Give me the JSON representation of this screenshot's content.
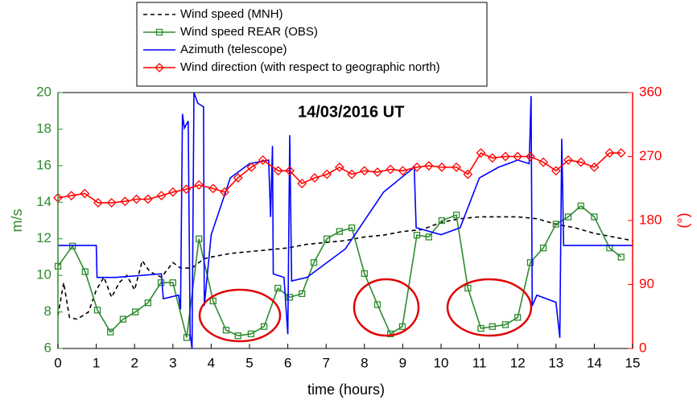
{
  "chart_data": {
    "type": "line",
    "annotation": "14/03/2016 UT",
    "xlabel": "time (hours)",
    "ylabel": "m/s",
    "y2label": "(°)",
    "xlim": [
      0,
      15
    ],
    "xticks": [
      0,
      1,
      2,
      3,
      4,
      5,
      6,
      7,
      8,
      9,
      10,
      11,
      12,
      13,
      14,
      15
    ],
    "ylim": [
      6,
      20
    ],
    "yticks": [
      6,
      8,
      10,
      12,
      14,
      16,
      18,
      20
    ],
    "y2lim": [
      0,
      360
    ],
    "y2ticks": [
      0,
      90,
      180,
      270,
      360
    ],
    "ycolor": "#2e8b2e",
    "y2color": "#ff0000",
    "series": [
      {
        "name": "Wind speed (MNH)",
        "color": "#000000",
        "dash": true,
        "marker": "none",
        "axis": "y",
        "x": [
          0,
          0.15,
          0.3,
          0.5,
          0.8,
          1.0,
          1.2,
          1.4,
          1.6,
          1.8,
          2.0,
          2.2,
          2.4,
          2.7,
          3.0,
          3.2,
          3.5,
          3.8,
          4.0,
          4.5,
          5.0,
          5.5,
          6.0,
          6.5,
          7.0,
          7.5,
          8.0,
          8.5,
          9.0,
          9.5,
          10.0,
          10.5,
          11.0,
          11.5,
          12.0,
          12.5,
          13.0,
          13.5,
          14.0,
          14.5,
          15.0
        ],
        "values": [
          7.8,
          9.6,
          7.7,
          7.6,
          8.0,
          9.2,
          9.9,
          8.8,
          9.6,
          10.0,
          9.2,
          10.8,
          10.2,
          9.9,
          10.7,
          10.4,
          10.4,
          10.9,
          11.0,
          11.2,
          11.3,
          11.4,
          11.5,
          11.7,
          11.8,
          11.9,
          12.1,
          12.2,
          12.4,
          12.5,
          12.9,
          13.1,
          13.2,
          13.2,
          13.2,
          13.1,
          12.8,
          12.6,
          12.3,
          12.1,
          11.9
        ]
      },
      {
        "name": "Wind speed REAR (OBS)",
        "color": "#2e8b2e",
        "dash": false,
        "marker": "square",
        "axis": "y",
        "x": [
          0,
          0.38,
          0.71,
          1.03,
          1.37,
          1.7,
          2.02,
          2.35,
          2.69,
          3.0,
          3.36,
          3.68,
          4.05,
          4.39,
          4.7,
          5.04,
          5.38,
          5.74,
          6.05,
          6.37,
          6.68,
          7.02,
          7.35,
          7.67,
          8.0,
          8.34,
          8.68,
          8.99,
          9.37,
          9.68,
          10.02,
          10.4,
          10.7,
          11.04,
          11.34,
          11.68,
          12.0,
          12.33,
          12.67,
          13.0,
          13.32,
          13.65,
          14.0,
          14.4,
          14.7
        ],
        "values": [
          10.5,
          11.6,
          10.2,
          8.1,
          6.9,
          7.6,
          8.0,
          8.5,
          9.6,
          9.6,
          6.6,
          12.0,
          8.6,
          7.0,
          6.7,
          6.8,
          7.2,
          9.3,
          8.8,
          9.0,
          10.7,
          12.0,
          12.4,
          12.6,
          10.1,
          8.4,
          6.8,
          7.2,
          12.2,
          12.1,
          13.0,
          13.3,
          9.3,
          7.1,
          7.2,
          7.3,
          7.7,
          10.7,
          11.5,
          12.8,
          13.2,
          13.8,
          13.2,
          11.5,
          11.0
        ]
      },
      {
        "name": "Azimuth (telescope)",
        "color": "#0000ff",
        "dash": false,
        "marker": "none",
        "axis": "y2",
        "x": [
          0,
          1.0,
          1.02,
          1.5,
          2.7,
          2.75,
          3.15,
          3.2,
          3.25,
          3.3,
          3.4,
          3.45,
          3.5,
          3.55,
          3.65,
          3.8,
          3.82,
          4.0,
          4.5,
          5.0,
          5.5,
          5.55,
          5.6,
          5.62,
          5.9,
          6.0,
          6.05,
          6.1,
          6.5,
          7.5,
          8.5,
          9.3,
          9.35,
          10.0,
          10.5,
          11.0,
          11.5,
          12.0,
          12.3,
          12.35,
          12.38,
          12.5,
          13.0,
          13.1,
          13.15,
          13.2,
          15.0
        ],
        "values": [
          145,
          145,
          100,
          100,
          105,
          70,
          75,
          55,
          330,
          310,
          320,
          20,
          0,
          360,
          345,
          340,
          60,
          160,
          240,
          260,
          265,
          185,
          285,
          105,
          100,
          20,
          300,
          95,
          100,
          140,
          220,
          255,
          170,
          160,
          170,
          240,
          255,
          265,
          260,
          355,
          60,
          75,
          65,
          15,
          295,
          145,
          145
        ]
      },
      {
        "name": "Wind direction (with respect to geographic north)",
        "color": "#ff0000",
        "dash": false,
        "marker": "diamond",
        "axis": "y2",
        "x": [
          0,
          0.35,
          0.7,
          1.05,
          1.4,
          1.75,
          2.05,
          2.35,
          2.7,
          3.0,
          3.35,
          3.68,
          4.05,
          4.35,
          4.7,
          5.05,
          5.35,
          5.75,
          6.05,
          6.37,
          6.7,
          7.02,
          7.35,
          7.67,
          8.0,
          8.34,
          8.68,
          9.0,
          9.37,
          9.68,
          10.02,
          10.4,
          10.7,
          11.04,
          11.34,
          11.68,
          12.0,
          12.33,
          12.67,
          13.0,
          13.32,
          13.65,
          14.0,
          14.4,
          14.7
        ],
        "values": [
          212,
          215,
          218,
          205,
          205,
          207,
          210,
          210,
          215,
          220,
          224,
          230,
          225,
          220,
          240,
          255,
          265,
          250,
          250,
          232,
          240,
          245,
          255,
          245,
          250,
          248,
          252,
          250,
          255,
          257,
          255,
          255,
          245,
          275,
          268,
          270,
          270,
          270,
          262,
          250,
          265,
          262,
          255,
          275,
          275
        ]
      }
    ]
  }
}
